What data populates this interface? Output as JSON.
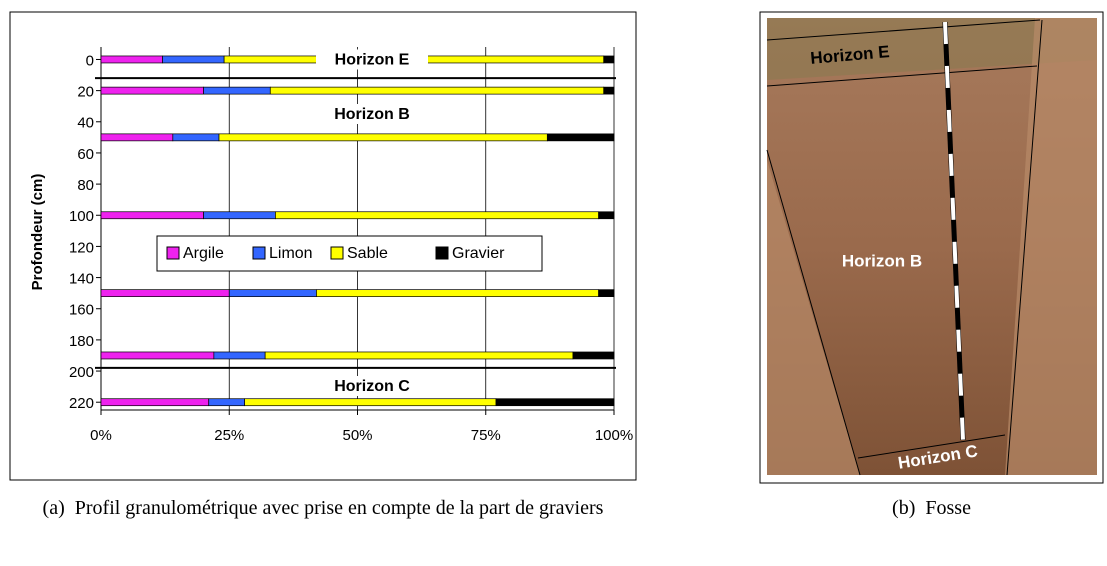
{
  "chart_data": {
    "type": "bar",
    "orientation": "horizontal",
    "stacked": true,
    "y_label": "Profondeur (cm)",
    "depths": [
      0,
      20,
      50,
      100,
      150,
      190,
      220
    ],
    "series": [
      {
        "name": "Argile",
        "color": "#ee22ee",
        "values": [
          12,
          20,
          14,
          20,
          25,
          22,
          21
        ]
      },
      {
        "name": "Limon",
        "color": "#3366ff",
        "values": [
          12,
          13,
          9,
          14,
          17,
          10,
          7
        ]
      },
      {
        "name": "Sable",
        "color": "#ffff00",
        "values": [
          74,
          65,
          64,
          63,
          55,
          60,
          49
        ]
      },
      {
        "name": "Gravier",
        "color": "#000000",
        "values": [
          2,
          2,
          13,
          3,
          3,
          8,
          23
        ]
      }
    ],
    "xlim": [
      0,
      100
    ],
    "xticks": [
      {
        "value": 0,
        "label": "0%"
      },
      {
        "value": 25,
        "label": "25%"
      },
      {
        "value": 50,
        "label": "50%"
      },
      {
        "value": 75,
        "label": "75%"
      },
      {
        "value": 100,
        "label": "100%"
      }
    ],
    "ylim": [
      -8,
      225
    ],
    "yticks": [
      0,
      20,
      40,
      60,
      80,
      100,
      120,
      140,
      160,
      180,
      200,
      220
    ],
    "grid": true,
    "legend": "center",
    "annotations": [
      "Horizon E",
      "Horizon B",
      "Horizon C"
    ],
    "boundaries": [
      12,
      198
    ]
  },
  "captions": {
    "a": {
      "label": "(a)",
      "text": "Profil granulométrique avec prise en compte de la part de graviers"
    },
    "b": {
      "label": "(b)",
      "text": "Fosse"
    }
  },
  "photo": {
    "labels": [
      "Horizon E",
      "Horizon B",
      "Horizon C"
    ]
  }
}
